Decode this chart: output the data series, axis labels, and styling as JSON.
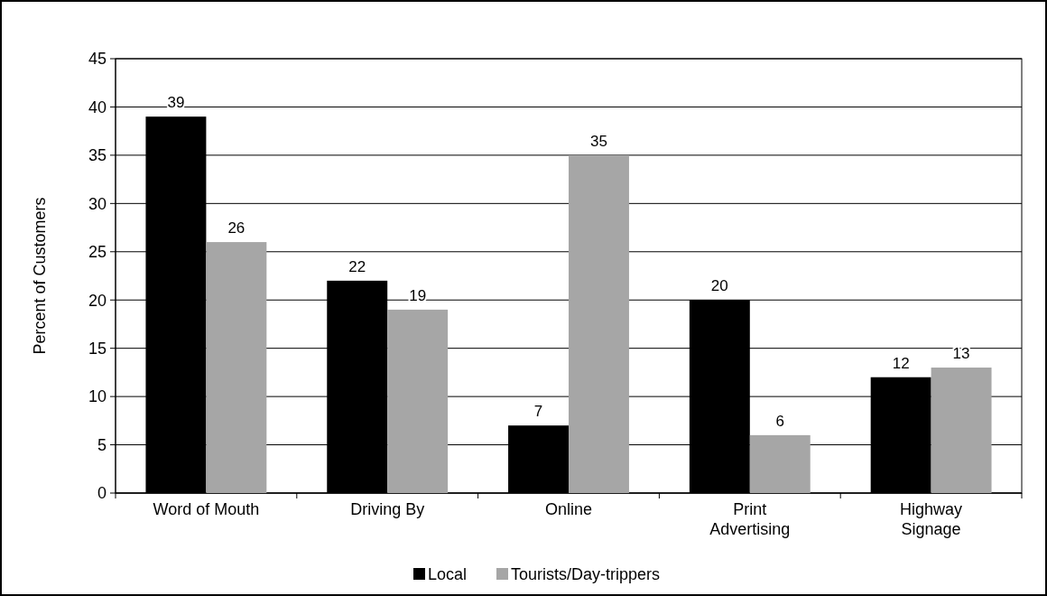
{
  "chart_data": {
    "type": "bar",
    "ylabel": "Percent of Customers",
    "categories": [
      "Word of Mouth",
      "Driving By",
      "Online",
      "Print\nAdvertising",
      "Highway\nSignage"
    ],
    "series": [
      {
        "name": "Local",
        "color": "#000000",
        "values": [
          39,
          22,
          7,
          20,
          12
        ]
      },
      {
        "name": "Tourists/Day-trippers",
        "color": "#a6a6a6",
        "values": [
          26,
          19,
          35,
          6,
          13
        ]
      }
    ],
    "ylim": [
      0,
      45
    ],
    "yticks": [
      0,
      5,
      10,
      15,
      20,
      25,
      30,
      35,
      40,
      45
    ],
    "grid": "y",
    "legend": "bottom",
    "data_labels": true
  }
}
